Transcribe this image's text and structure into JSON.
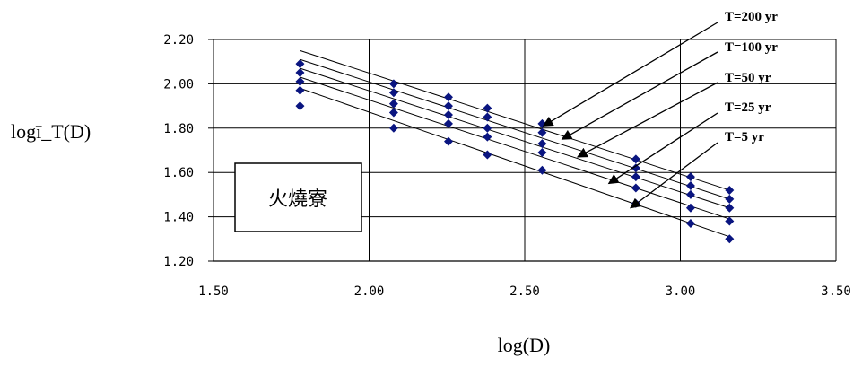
{
  "chart_data": {
    "type": "scatter",
    "xlabel": "log(D)",
    "ylabel": "logī_T(D)",
    "xlim": [
      1.5,
      3.5
    ],
    "ylim": [
      1.2,
      2.2
    ],
    "xticks": [
      "1.50",
      "2.00",
      "2.50",
      "3.00",
      "3.50"
    ],
    "yticks": [
      "1.20",
      "1.40",
      "1.60",
      "1.80",
      "2.00",
      "2.20"
    ],
    "grid": true,
    "station_label": "火燒寮",
    "series": [
      {
        "name": "T=200 yr",
        "x": [
          1.778,
          2.079,
          2.255,
          2.38,
          2.556,
          2.857,
          3.033,
          3.158
        ],
        "y": [
          2.09,
          2.0,
          1.94,
          1.89,
          1.82,
          1.66,
          1.58,
          1.52
        ],
        "line": [
          [
            1.778,
            2.15
          ],
          [
            3.158,
            1.52
          ]
        ]
      },
      {
        "name": "T=100 yr",
        "x": [
          1.778,
          2.079,
          2.255,
          2.38,
          2.556,
          2.857,
          3.033,
          3.158
        ],
        "y": [
          2.05,
          1.96,
          1.9,
          1.85,
          1.78,
          1.62,
          1.54,
          1.48
        ],
        "line": [
          [
            1.778,
            2.11
          ],
          [
            3.158,
            1.48
          ]
        ]
      },
      {
        "name": "T=50 yr",
        "x": [
          1.778,
          2.079,
          2.255,
          2.38,
          2.556,
          2.857,
          3.033,
          3.158
        ],
        "y": [
          2.01,
          1.91,
          1.86,
          1.8,
          1.73,
          1.58,
          1.5,
          1.44
        ],
        "line": [
          [
            1.778,
            2.07
          ],
          [
            3.158,
            1.44
          ]
        ]
      },
      {
        "name": "T=25 yr",
        "x": [
          1.778,
          2.079,
          2.255,
          2.38,
          2.556,
          2.857,
          3.033,
          3.158
        ],
        "y": [
          1.97,
          1.87,
          1.82,
          1.76,
          1.69,
          1.53,
          1.44,
          1.38
        ],
        "line": [
          [
            1.778,
            2.03
          ],
          [
            3.158,
            1.39
          ]
        ]
      },
      {
        "name": "T=5 yr",
        "x": [
          1.778,
          2.079,
          2.255,
          2.38,
          2.556,
          2.857,
          3.033,
          3.158
        ],
        "y": [
          1.9,
          1.8,
          1.74,
          1.68,
          1.61,
          1.46,
          1.37,
          1.3
        ],
        "line": [
          [
            1.778,
            1.98
          ],
          [
            3.158,
            1.31
          ]
        ]
      }
    ],
    "annotations": [
      {
        "text": "T=200 yr",
        "target": [
          2.56,
          1.81
        ]
      },
      {
        "text": "T=100 yr",
        "target": [
          2.62,
          1.75
        ]
      },
      {
        "text": "T=50 yr",
        "target": [
          2.67,
          1.67
        ]
      },
      {
        "text": "T=25 yr",
        "target": [
          2.77,
          1.55
        ]
      },
      {
        "text": "T=5 yr",
        "target": [
          2.84,
          1.44
        ]
      }
    ]
  },
  "colors": {
    "marker": "#0A1580",
    "line": "#000000",
    "grid": "#000000"
  }
}
